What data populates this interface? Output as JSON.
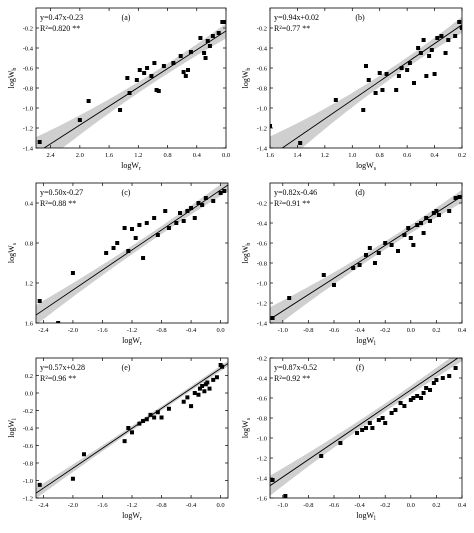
{
  "chart_data": [
    {
      "type": "scatter",
      "panel_label": "(a)",
      "equation": "y=0.47x-0.23",
      "r2": "R²=0.820 **",
      "xlabel": "logW_r",
      "ylabel": "logW_b",
      "xlim": [
        -2.6,
        0.0
      ],
      "ylim": [
        -1.4,
        0.0
      ],
      "x_reversed_ticks": true,
      "xticks": [
        -2.4,
        -2.0,
        -1.6,
        -1.2,
        -0.8,
        -0.4,
        0.0
      ],
      "xtick_labels": [
        "2.4",
        "2.0",
        "1.6",
        "1.2",
        "0.8",
        "0.4",
        "0.0"
      ],
      "yticks": [
        -1.4,
        -1.2,
        -1.0,
        -0.8,
        -0.6,
        -0.4,
        -0.2
      ],
      "ytick_labels": [
        "-1.4",
        "-1.2",
        "-1.0",
        "-0.8",
        "-0.6",
        "-0.4",
        "-0.2"
      ],
      "fit": {
        "slope": 0.47,
        "intercept": -0.23
      },
      "ci_half_width": [
        0.16,
        0.05
      ],
      "points": [
        [
          -2.55,
          -1.34
        ],
        [
          -2.0,
          -1.12
        ],
        [
          -1.88,
          -0.93
        ],
        [
          -1.45,
          -1.02
        ],
        [
          -1.35,
          -0.7
        ],
        [
          -1.32,
          -0.85
        ],
        [
          -1.22,
          -0.72
        ],
        [
          -1.18,
          -0.62
        ],
        [
          -1.12,
          -0.65
        ],
        [
          -1.08,
          -0.6
        ],
        [
          -1.02,
          -0.68
        ],
        [
          -0.98,
          -0.55
        ],
        [
          -0.95,
          -0.82
        ],
        [
          -0.92,
          -0.83
        ],
        [
          -0.85,
          -0.58
        ],
        [
          -0.72,
          -0.55
        ],
        [
          -0.62,
          -0.48
        ],
        [
          -0.58,
          -0.64
        ],
        [
          -0.55,
          -0.68
        ],
        [
          -0.52,
          -0.62
        ],
        [
          -0.48,
          -0.44
        ],
        [
          -0.35,
          -0.3
        ],
        [
          -0.3,
          -0.45
        ],
        [
          -0.28,
          -0.5
        ],
        [
          -0.25,
          -0.33
        ],
        [
          -0.22,
          -0.38
        ],
        [
          -0.18,
          -0.28
        ],
        [
          -0.1,
          -0.25
        ],
        [
          -0.05,
          -0.14
        ],
        [
          -0.02,
          -0.14
        ]
      ]
    },
    {
      "type": "scatter",
      "panel_label": "(b)",
      "equation": "y=0.94x+0.02",
      "r2": "R²=0.77 **",
      "xlabel": "logW_s",
      "ylabel": "logW_b",
      "xlim": [
        -1.6,
        -0.2
      ],
      "ylim": [
        -1.4,
        0.0
      ],
      "x_reversed_ticks": true,
      "xticks": [
        -1.6,
        -1.4,
        -1.2,
        -1.0,
        -0.8,
        -0.6,
        -0.4,
        -0.2
      ],
      "xtick_labels": [
        "1.6",
        "1.4",
        "1.2",
        "1.0",
        "0.8",
        "0.6",
        "0.4",
        "0.2"
      ],
      "yticks": [
        -1.4,
        -1.2,
        -1.0,
        -0.8,
        -0.6,
        -0.4,
        -0.2
      ],
      "ytick_labels": [
        "-1.4",
        "-1.2",
        "-1.0",
        "-0.8",
        "-0.6",
        "-0.4",
        "-0.2"
      ],
      "fit": {
        "slope": 0.94,
        "intercept": 0.02
      },
      "ci_half_width": [
        0.2,
        0.05
      ],
      "points": [
        [
          -1.6,
          -1.18
        ],
        [
          -1.38,
          -1.35
        ],
        [
          -1.12,
          -0.92
        ],
        [
          -0.92,
          -1.02
        ],
        [
          -0.9,
          -0.58
        ],
        [
          -0.88,
          -0.72
        ],
        [
          -0.83,
          -0.85
        ],
        [
          -0.8,
          -0.65
        ],
        [
          -0.78,
          -0.82
        ],
        [
          -0.75,
          -0.66
        ],
        [
          -0.68,
          -0.82
        ],
        [
          -0.66,
          -0.68
        ],
        [
          -0.64,
          -0.6
        ],
        [
          -0.6,
          -0.62
        ],
        [
          -0.58,
          -0.55
        ],
        [
          -0.55,
          -0.75
        ],
        [
          -0.52,
          -0.4
        ],
        [
          -0.5,
          -0.45
        ],
        [
          -0.48,
          -0.32
        ],
        [
          -0.46,
          -0.68
        ],
        [
          -0.44,
          -0.48
        ],
        [
          -0.42,
          -0.42
        ],
        [
          -0.4,
          -0.66
        ],
        [
          -0.38,
          -0.3
        ],
        [
          -0.35,
          -0.28
        ],
        [
          -0.32,
          -0.45
        ],
        [
          -0.3,
          -0.32
        ],
        [
          -0.25,
          -0.28
        ],
        [
          -0.22,
          -0.14
        ],
        [
          -0.2,
          -0.2
        ]
      ]
    },
    {
      "type": "scatter",
      "panel_label": "(c)",
      "equation": "y=0.50x-0.27",
      "r2": "R²=0.88 **",
      "xlabel": "logW_r",
      "ylabel": "logW_s",
      "xlim": [
        -2.5,
        0.1
      ],
      "ylim": [
        -1.6,
        -0.2
      ],
      "x_reversed_ticks": false,
      "xticks": [
        -2.4,
        -2.0,
        -1.6,
        -1.2,
        -0.8,
        -0.4,
        0.0
      ],
      "xtick_labels": [
        "-2.4",
        "-2.0",
        "-1.6",
        "-1.2",
        "-0.8",
        "-0.4",
        "0.0"
      ],
      "yticks": [
        -1.6,
        -1.2,
        -0.8,
        -0.4
      ],
      "ytick_labels": [
        "1.6",
        "1.2",
        "0.8",
        "0.4"
      ],
      "fit": {
        "slope": 0.5,
        "intercept": -0.27
      },
      "ci_half_width": [
        0.1,
        0.04
      ],
      "points": [
        [
          -2.45,
          -1.38
        ],
        [
          -2.2,
          -1.6
        ],
        [
          -2.0,
          -1.1
        ],
        [
          -1.55,
          -0.9
        ],
        [
          -1.45,
          -0.85
        ],
        [
          -1.4,
          -0.8
        ],
        [
          -1.3,
          -0.65
        ],
        [
          -1.25,
          -0.88
        ],
        [
          -1.2,
          -0.66
        ],
        [
          -1.15,
          -0.75
        ],
        [
          -1.1,
          -0.62
        ],
        [
          -1.05,
          -0.95
        ],
        [
          -1.0,
          -0.6
        ],
        [
          -0.9,
          -0.55
        ],
        [
          -0.85,
          -0.72
        ],
        [
          -0.75,
          -0.48
        ],
        [
          -0.7,
          -0.65
        ],
        [
          -0.6,
          -0.6
        ],
        [
          -0.55,
          -0.5
        ],
        [
          -0.5,
          -0.58
        ],
        [
          -0.45,
          -0.48
        ],
        [
          -0.4,
          -0.45
        ],
        [
          -0.35,
          -0.55
        ],
        [
          -0.3,
          -0.4
        ],
        [
          -0.25,
          -0.42
        ],
        [
          -0.2,
          -0.35
        ],
        [
          -0.1,
          -0.38
        ],
        [
          0.0,
          -0.3
        ],
        [
          0.02,
          -0.18
        ],
        [
          0.05,
          -0.28
        ]
      ]
    },
    {
      "type": "scatter",
      "panel_label": "(d)",
      "equation": "y=0.82x-0.46",
      "r2": "R²=0.91 **",
      "xlabel": "logW_l",
      "ylabel": "logW_b",
      "xlim": [
        -1.1,
        0.4
      ],
      "ylim": [
        -1.4,
        0.0
      ],
      "x_reversed_ticks": false,
      "xticks": [
        -1.0,
        -0.8,
        -0.6,
        -0.4,
        -0.2,
        0.0,
        0.2,
        0.4
      ],
      "xtick_labels": [
        "-1.0",
        "-0.8",
        "-0.6",
        "-0.4",
        "-0.2",
        "0.0",
        "0.2",
        "0.4"
      ],
      "yticks": [
        -1.4,
        -1.2,
        -1.0,
        -0.8,
        -0.6,
        -0.4,
        -0.2
      ],
      "ytick_labels": [
        "-1.4",
        "-1.2",
        "-1.0",
        "-0.8",
        "-0.6",
        "-0.4",
        "-0.2"
      ],
      "fit": {
        "slope": 0.82,
        "intercept": -0.46
      },
      "ci_half_width": [
        0.12,
        0.04
      ],
      "points": [
        [
          -1.08,
          -1.35
        ],
        [
          -0.95,
          -1.15
        ],
        [
          -0.68,
          -0.92
        ],
        [
          -0.6,
          -1.02
        ],
        [
          -0.45,
          -0.85
        ],
        [
          -0.4,
          -0.82
        ],
        [
          -0.35,
          -0.72
        ],
        [
          -0.32,
          -0.65
        ],
        [
          -0.28,
          -0.8
        ],
        [
          -0.25,
          -0.7
        ],
        [
          -0.2,
          -0.6
        ],
        [
          -0.15,
          -0.62
        ],
        [
          -0.1,
          -0.68
        ],
        [
          -0.05,
          -0.52
        ],
        [
          -0.02,
          -0.45
        ],
        [
          0.0,
          -0.55
        ],
        [
          0.02,
          -0.62
        ],
        [
          0.05,
          -0.42
        ],
        [
          0.08,
          -0.4
        ],
        [
          0.1,
          -0.5
        ],
        [
          0.12,
          -0.35
        ],
        [
          0.15,
          -0.38
        ],
        [
          0.18,
          -0.3
        ],
        [
          0.2,
          -0.28
        ],
        [
          0.22,
          -0.32
        ],
        [
          0.3,
          -0.28
        ],
        [
          0.35,
          -0.15
        ],
        [
          0.38,
          -0.14
        ]
      ]
    },
    {
      "type": "scatter",
      "panel_label": "(e)",
      "equation": "y=0.57x+0.28",
      "r2": "R²=0.96 **",
      "xlabel": "logW_r",
      "ylabel": "logW_l",
      "xlim": [
        -2.5,
        0.1
      ],
      "ylim": [
        -1.2,
        0.4
      ],
      "x_reversed_ticks": false,
      "xticks": [
        -2.4,
        -2.0,
        -1.6,
        -1.2,
        -0.8,
        -0.4,
        0.0
      ],
      "xtick_labels": [
        "-2.4",
        "-2.0",
        "-1.6",
        "-1.2",
        "-0.8",
        "-0.4",
        "0.0"
      ],
      "yticks": [
        -1.2,
        -1.0,
        -0.8,
        -0.6,
        -0.4,
        -0.2,
        0.0,
        0.2
      ],
      "ytick_labels": [
        "-1.2",
        "-1.0",
        "-0.8",
        "-0.6",
        "-0.4",
        "-0.2",
        "0.0",
        "0.2"
      ],
      "fit": {
        "slope": 0.57,
        "intercept": 0.28
      },
      "ci_half_width": [
        0.06,
        0.025
      ],
      "points": [
        [
          -2.45,
          -1.05
        ],
        [
          -2.0,
          -0.98
        ],
        [
          -1.85,
          -0.7
        ],
        [
          -1.3,
          -0.55
        ],
        [
          -1.25,
          -0.4
        ],
        [
          -1.2,
          -0.45
        ],
        [
          -1.1,
          -0.35
        ],
        [
          -1.05,
          -0.32
        ],
        [
          -1.0,
          -0.3
        ],
        [
          -0.95,
          -0.25
        ],
        [
          -0.9,
          -0.28
        ],
        [
          -0.85,
          -0.22
        ],
        [
          -0.8,
          -0.28
        ],
        [
          -0.7,
          -0.18
        ],
        [
          -0.5,
          -0.1
        ],
        [
          -0.45,
          -0.05
        ],
        [
          -0.4,
          -0.15
        ],
        [
          -0.35,
          0.0
        ],
        [
          -0.3,
          -0.02
        ],
        [
          -0.28,
          0.05
        ],
        [
          -0.25,
          0.08
        ],
        [
          -0.22,
          0.02
        ],
        [
          -0.2,
          0.1
        ],
        [
          -0.18,
          0.12
        ],
        [
          -0.15,
          0.05
        ],
        [
          -0.1,
          0.15
        ],
        [
          -0.05,
          0.18
        ],
        [
          0.0,
          0.32
        ],
        [
          0.02,
          0.3
        ]
      ]
    },
    {
      "type": "scatter",
      "panel_label": "(f)",
      "equation": "y=0.87x-0.52",
      "r2": "R²=0.92 **",
      "xlabel": "logW_l",
      "ylabel": "logW_s",
      "xlim": [
        -1.1,
        0.4
      ],
      "ylim": [
        -1.6,
        -0.2
      ],
      "x_reversed_ticks": false,
      "xticks": [
        -1.0,
        -0.8,
        -0.6,
        -0.4,
        -0.2,
        0.0,
        0.2,
        0.4
      ],
      "xtick_labels": [
        "-1.0",
        "-0.8",
        "-0.6",
        "-0.4",
        "-0.2",
        "0.0",
        "0.2",
        "0.4"
      ],
      "yticks": [
        -1.6,
        -1.4,
        -1.2,
        -1.0,
        -0.8,
        -0.6,
        -0.4,
        -0.2
      ],
      "ytick_labels": [
        "-1.6",
        "-1.4",
        "-1.2",
        "-1.0",
        "-0.8",
        "-0.6",
        "-0.4",
        "-0.2"
      ],
      "fit": {
        "slope": 0.87,
        "intercept": -0.52
      },
      "ci_half_width": [
        0.1,
        0.04
      ],
      "points": [
        [
          -1.08,
          -1.42
        ],
        [
          -0.98,
          -1.58
        ],
        [
          -0.7,
          -1.18
        ],
        [
          -0.55,
          -1.05
        ],
        [
          -0.42,
          -0.95
        ],
        [
          -0.38,
          -0.92
        ],
        [
          -0.35,
          -0.9
        ],
        [
          -0.32,
          -0.85
        ],
        [
          -0.3,
          -0.9
        ],
        [
          -0.25,
          -0.82
        ],
        [
          -0.22,
          -0.8
        ],
        [
          -0.2,
          -0.85
        ],
        [
          -0.15,
          -0.75
        ],
        [
          -0.12,
          -0.72
        ],
        [
          -0.08,
          -0.65
        ],
        [
          -0.05,
          -0.68
        ],
        [
          0.0,
          -0.62
        ],
        [
          0.02,
          -0.6
        ],
        [
          0.05,
          -0.58
        ],
        [
          0.08,
          -0.6
        ],
        [
          0.1,
          -0.55
        ],
        [
          0.12,
          -0.5
        ],
        [
          0.15,
          -0.52
        ],
        [
          0.18,
          -0.45
        ],
        [
          0.2,
          -0.42
        ],
        [
          0.25,
          -0.4
        ],
        [
          0.3,
          -0.38
        ],
        [
          0.35,
          -0.3
        ]
      ]
    }
  ]
}
